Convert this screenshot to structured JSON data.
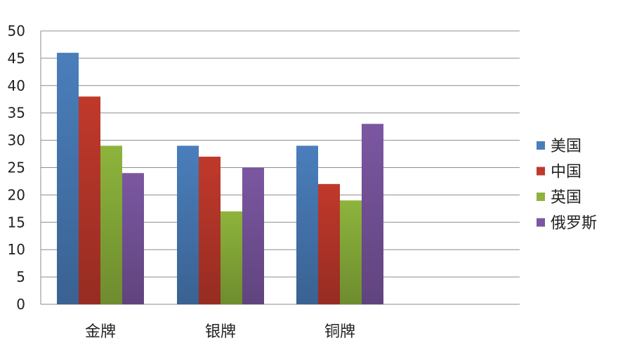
{
  "chart_data": {
    "type": "bar",
    "categories": [
      "金牌",
      "银牌",
      "铜牌"
    ],
    "series": [
      {
        "name": "美国",
        "color": "#4a7ebb",
        "values": [
          46,
          29,
          29
        ]
      },
      {
        "name": "中国",
        "color": "#c0392b",
        "values": [
          38,
          27,
          22
        ]
      },
      {
        "name": "英国",
        "color": "#8db43c",
        "values": [
          29,
          17,
          19
        ]
      },
      {
        "name": "俄罗斯",
        "color": "#7b57a1",
        "values": [
          24,
          25,
          33
        ]
      }
    ],
    "yticks": [
      "0",
      "5",
      "10",
      "15",
      "20",
      "25",
      "30",
      "35",
      "40",
      "45",
      "50"
    ],
    "ylim": [
      0,
      50
    ],
    "grid": true,
    "legend_position": "right"
  }
}
